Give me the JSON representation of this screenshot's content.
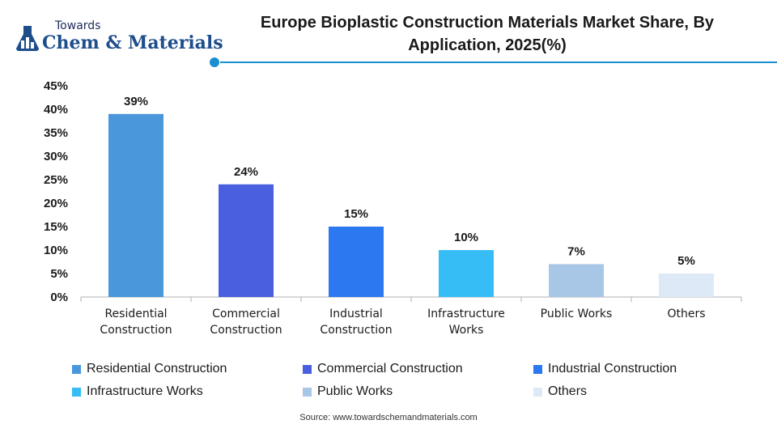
{
  "logo": {
    "small": "Towards",
    "big": "Chem & Materials"
  },
  "source": "Source: www.towardschemandmaterials.com",
  "chart_data": {
    "type": "bar",
    "title": "Europe Bioplastic Construction Materials Market Share, By Application, 2025(%)",
    "title_lines": [
      "Europe Bioplastic Construction Materials Market Share, By",
      "Application, 2025(%)"
    ],
    "xlabel": "",
    "ylabel": "",
    "ylim": [
      0,
      45
    ],
    "yticks": [
      "0%",
      "5%",
      "10%",
      "15%",
      "20%",
      "25%",
      "30%",
      "35%",
      "40%",
      "45%"
    ],
    "categories": [
      [
        "Residential",
        "Construction"
      ],
      [
        "Commercial",
        "Construction"
      ],
      [
        "Industrial",
        "Construction"
      ],
      [
        "Infrastructure",
        "Works"
      ],
      [
        "Public Works"
      ],
      [
        "Others"
      ]
    ],
    "values": [
      39,
      24,
      15,
      10,
      7,
      5
    ],
    "data_labels": [
      "39%",
      "24%",
      "15%",
      "10%",
      "7%",
      "5%"
    ],
    "colors": [
      "#4a97dc",
      "#4a5ee0",
      "#2b78f0",
      "#36bdf5",
      "#a8c6e6",
      "#dde9f6"
    ],
    "grid": false,
    "legend": {
      "position": "bottom",
      "entries": [
        "Residential Construction",
        "Commercial Construction",
        "Industrial Construction",
        "Infrastructure Works",
        "Public Works",
        "Others"
      ]
    }
  }
}
